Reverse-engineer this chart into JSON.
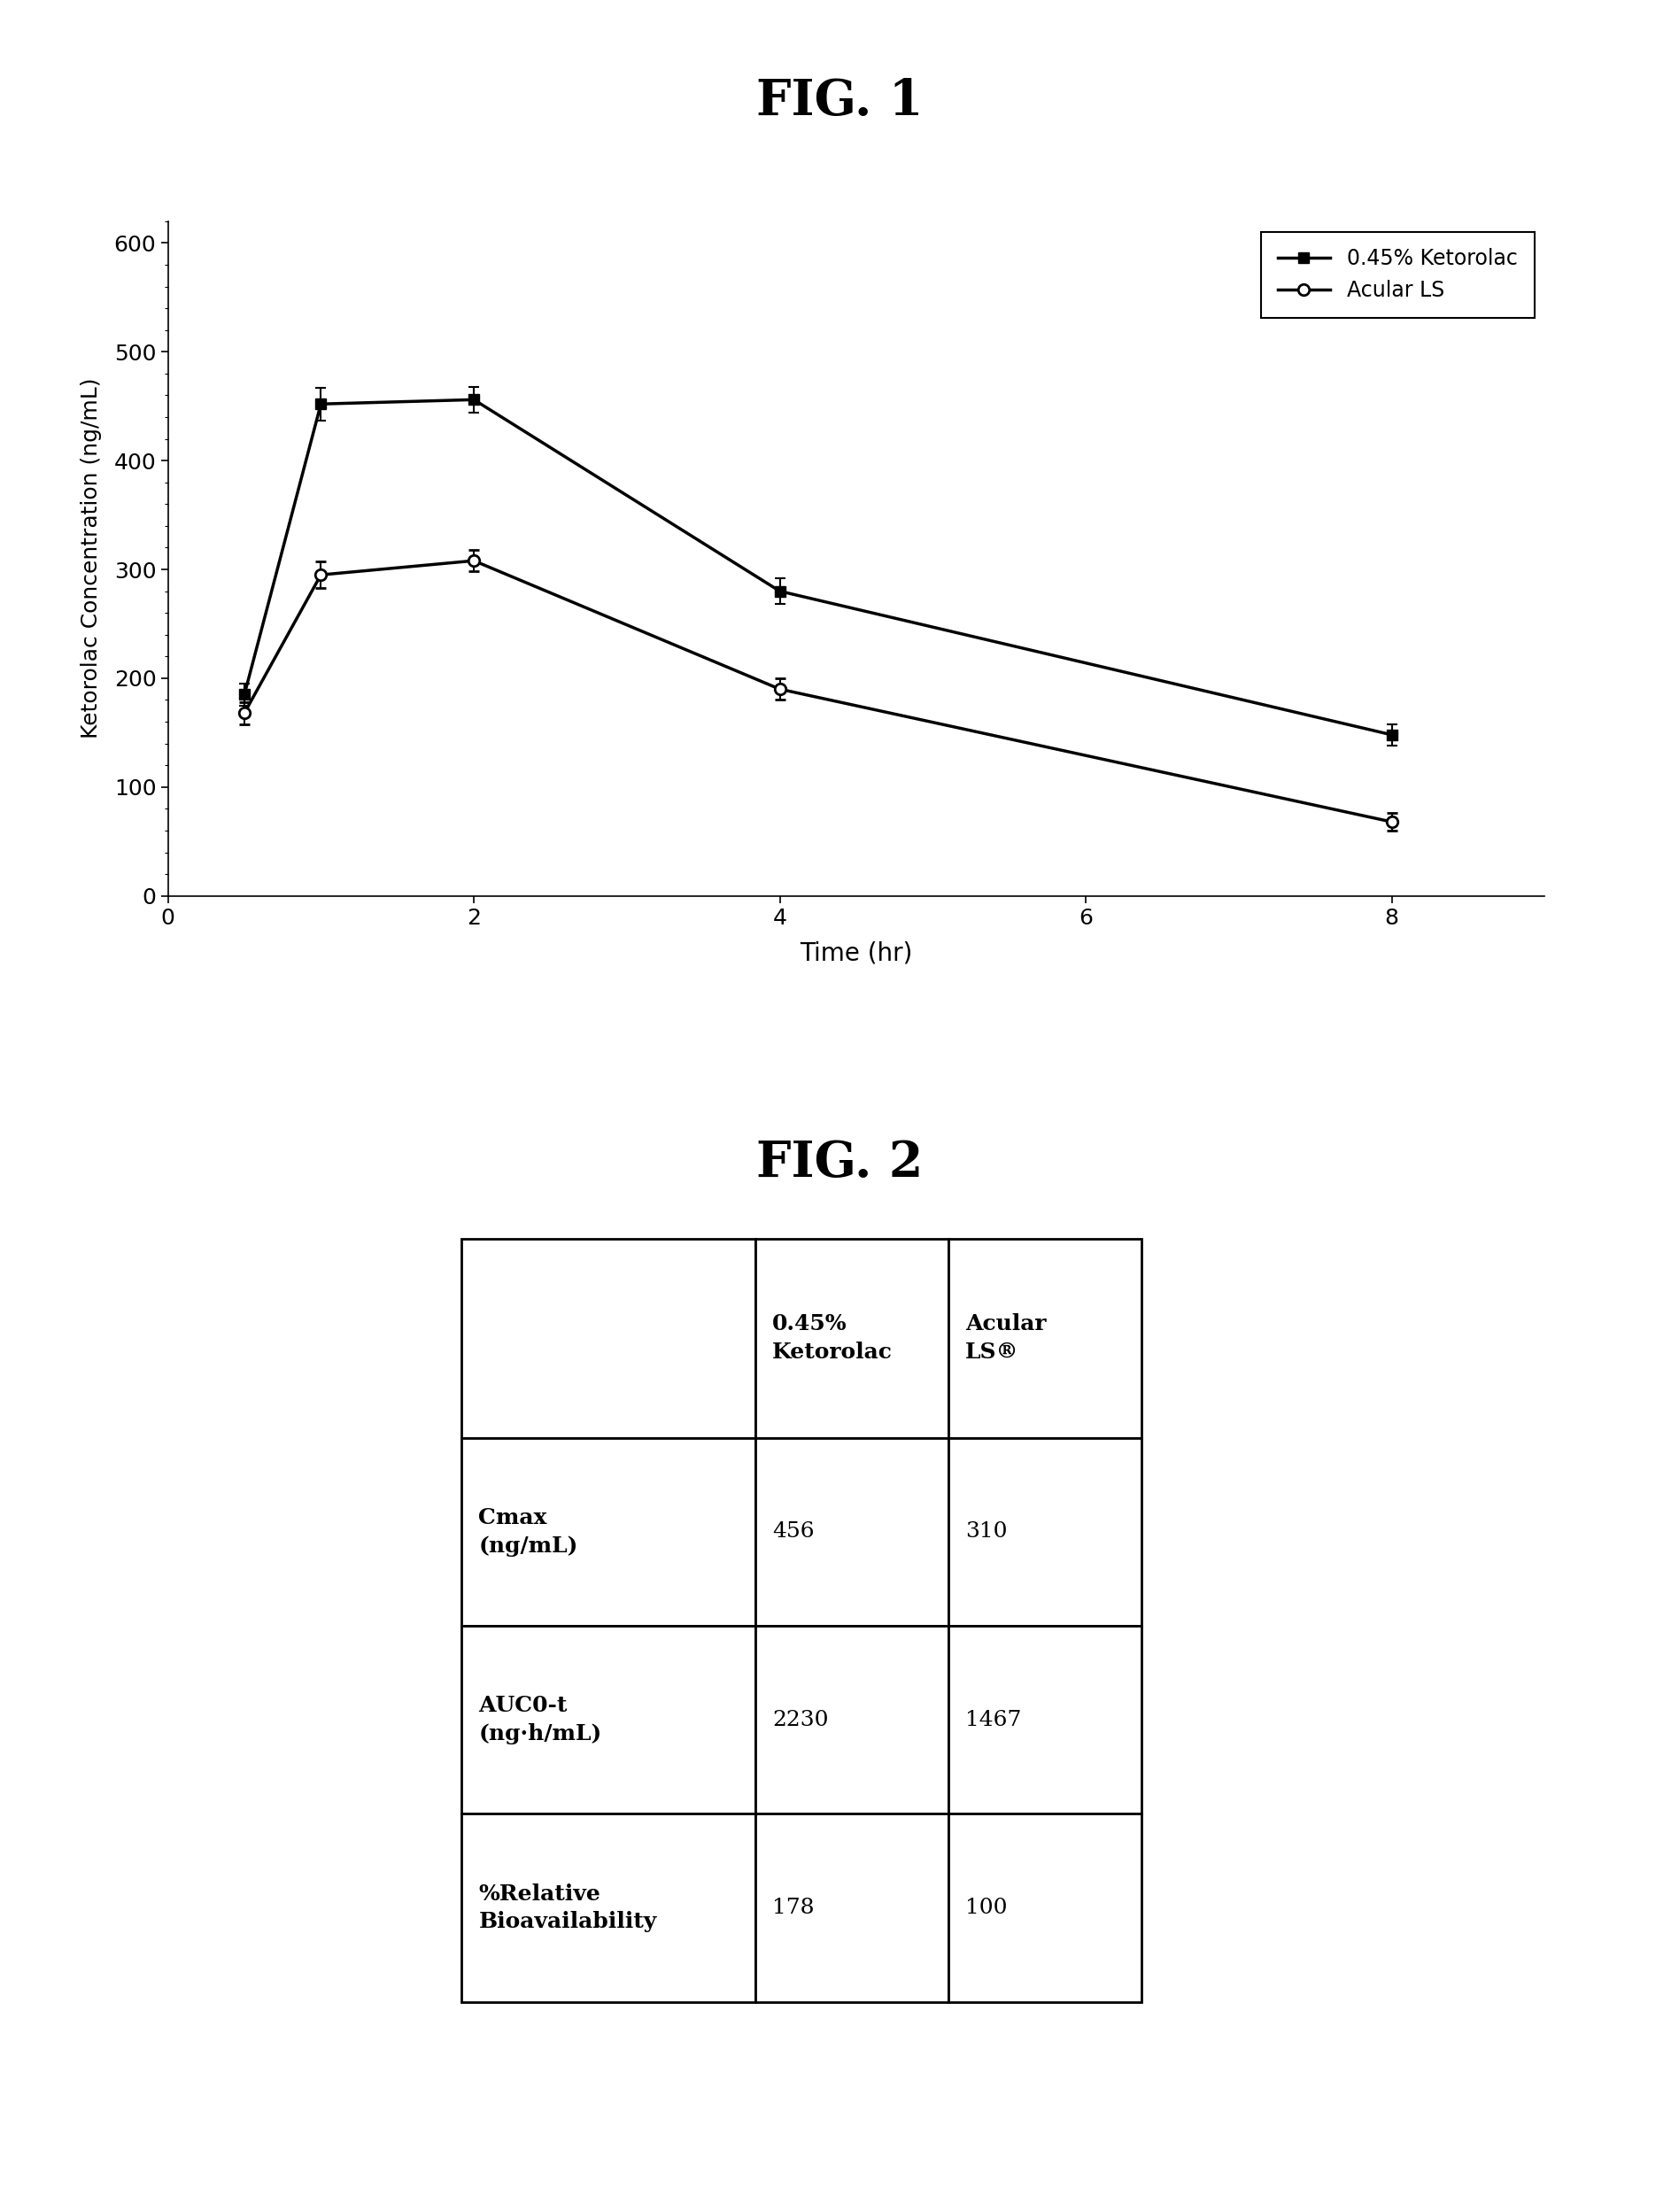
{
  "fig1_title": "FIG. 1",
  "fig2_title": "FIG. 2",
  "time": [
    0.5,
    1,
    2,
    4,
    8
  ],
  "ketorolac_045": [
    185,
    452,
    456,
    280,
    148
  ],
  "ketorolac_045_err": [
    10,
    15,
    12,
    12,
    10
  ],
  "acular_ls": [
    168,
    295,
    308,
    190,
    68
  ],
  "acular_ls_err": [
    10,
    12,
    10,
    10,
    8
  ],
  "ylabel": "Ketorolac Concentration (ng/mL)",
  "xlabel": "Time (hr)",
  "ylim": [
    0,
    620
  ],
  "xlim": [
    0,
    9
  ],
  "yticks": [
    0,
    100,
    200,
    300,
    400,
    500,
    600
  ],
  "xticks": [
    0,
    2,
    4,
    6,
    8
  ],
  "legend_labels": [
    "0.45% Ketorolac",
    "Acular LS"
  ],
  "table_col_headers_col1": "0.45%\nKetorolac",
  "table_col_headers_col2": "Acular\nLS®",
  "table_row_labels": [
    "Cmax\n(ng/mL)",
    "AUC0-t\n(ng·h/mL)",
    "%Relative\nBioavailability"
  ],
  "table_data": [
    [
      "456",
      "310"
    ],
    [
      "2230",
      "1467"
    ],
    [
      "178",
      "100"
    ]
  ],
  "background_color": "#ffffff",
  "line_color": "#000000"
}
